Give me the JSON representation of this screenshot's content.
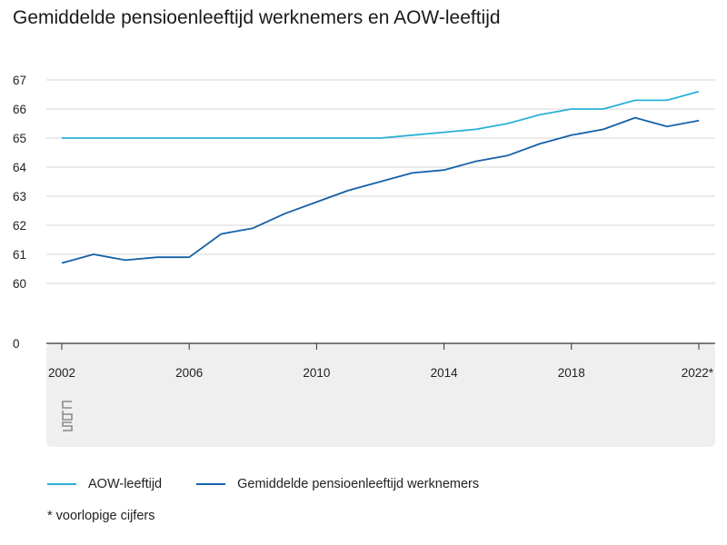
{
  "title": "Gemiddelde pensioenleeftijd werknemers en AOW-leeftijd",
  "footnote": "* voorlopige cijfers",
  "logo": {
    "icon": "cbs-logo-icon",
    "text": "cbs"
  },
  "colors": {
    "aow": "#2bb0d6",
    "pension": "#1660a8",
    "grid": "#d4d4d4",
    "panel": "#efefef",
    "axis": "#333333"
  },
  "chart_data": {
    "type": "line",
    "title": "Gemiddelde pensioenleeftijd werknemers en AOW-leeftijd",
    "x": [
      2002,
      2003,
      2004,
      2005,
      2006,
      2007,
      2008,
      2009,
      2010,
      2011,
      2012,
      2013,
      2014,
      2015,
      2016,
      2017,
      2018,
      2019,
      2020,
      2021,
      2022
    ],
    "x_tick_labels": [
      "2002",
      "2006",
      "2010",
      "2014",
      "2018",
      "2022*"
    ],
    "x_ticks": [
      2002,
      2006,
      2010,
      2014,
      2018,
      2022
    ],
    "y_ticks": [
      0,
      60,
      61,
      62,
      63,
      64,
      65,
      66,
      67
    ],
    "y_tick_labels": [
      "0",
      "60",
      "61",
      "62",
      "63",
      "64",
      "65",
      "66",
      "67"
    ],
    "y_axis_break": true,
    "grid": true,
    "legend_position": "bottom-left",
    "series": [
      {
        "name": "AOW-leeftijd",
        "color": "#2bb0d6",
        "values": [
          65,
          65,
          65,
          65,
          65,
          65,
          65,
          65,
          65,
          65,
          65,
          65.1,
          65.2,
          65.3,
          65.5,
          65.8,
          66.0,
          66.0,
          66.3,
          66.3,
          66.6
        ]
      },
      {
        "name": "Gemiddelde pensioenleeftijd werknemers",
        "color": "#1660a8",
        "values": [
          60.7,
          61.0,
          60.8,
          60.9,
          60.9,
          61.7,
          61.9,
          62.4,
          62.8,
          63.2,
          63.5,
          63.8,
          63.9,
          64.2,
          64.4,
          64.8,
          65.1,
          65.3,
          65.7,
          65.4,
          65.6
        ]
      }
    ]
  }
}
